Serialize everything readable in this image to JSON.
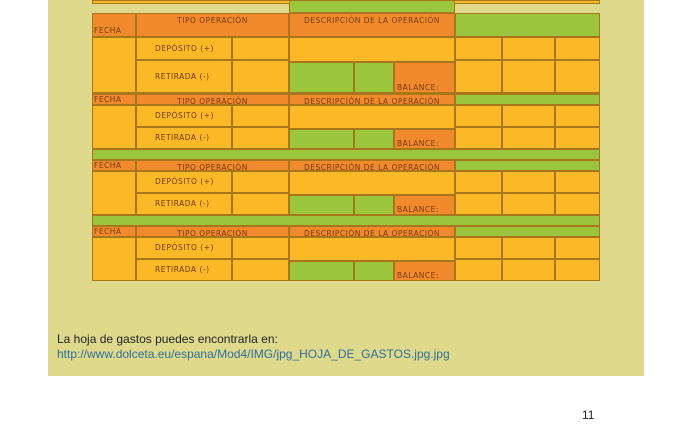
{
  "table": {
    "fecha": "FECHA",
    "tipo_operacion": "TIPO OPERACIÓN",
    "descripcion": "DESCRIPCIÓN DE LA OPERACIÓN",
    "deposito": "DEPÓSITO (+)",
    "retirada": "RETIRADA (-)",
    "balance": "BALANCE:",
    "block_count": 4
  },
  "caption": "La hoja de gastos puedes encontrarla en:",
  "link": "http://www.dolceta.eu/espana/Mod4/IMG/jpg_HOJA_DE_GASTOS.jpg.jpg",
  "page_number": "11",
  "colors": {
    "panel": "#dfd98c",
    "orange": "#f08a2c",
    "yellow": "#fbb827",
    "green": "#9bc53d",
    "link": "#2f6f9a"
  }
}
